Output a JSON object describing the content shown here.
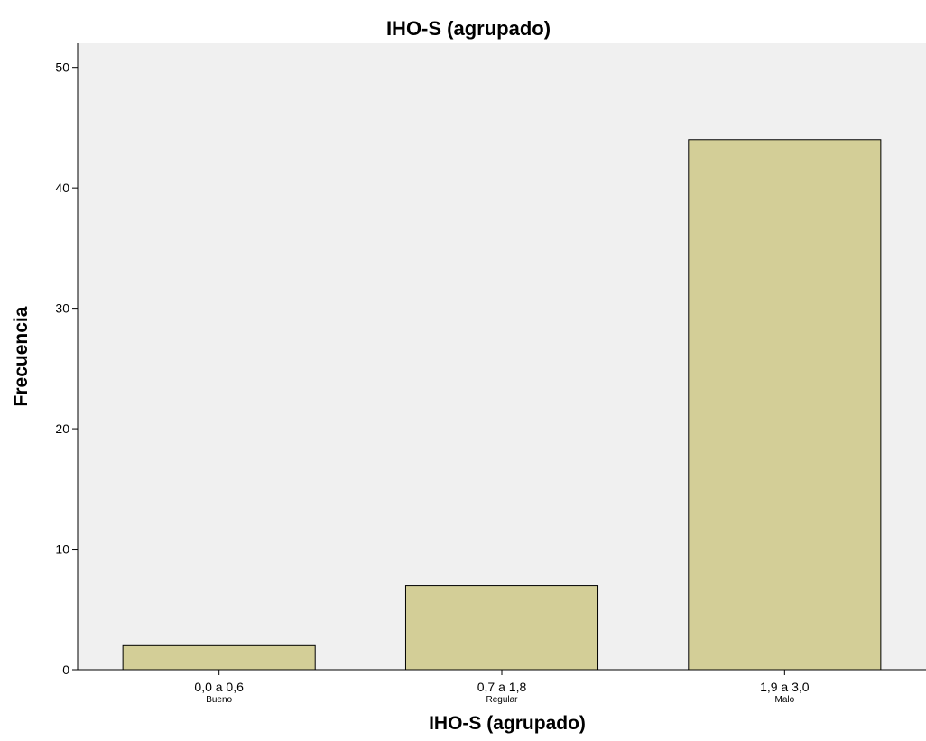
{
  "chart_data": {
    "type": "bar",
    "title": "IHO-S (agrupado)",
    "xlabel": "IHO-S (agrupado)",
    "ylabel": "Frecuencia",
    "categories": [
      "0,0 a 0,6",
      "0,7 a 1,8",
      "1,9 a 3,0"
    ],
    "category_sublabels": [
      "Bueno",
      "Regular",
      "Malo"
    ],
    "values": [
      2,
      7,
      44
    ],
    "ylim": [
      0,
      52
    ],
    "yticks": [
      0,
      10,
      20,
      30,
      40,
      50
    ],
    "grid": false,
    "legend": "none",
    "colors": {
      "plot_background": "#f0f0f0",
      "bar_fill": "#d3ce97",
      "bar_stroke": "#000000"
    }
  }
}
